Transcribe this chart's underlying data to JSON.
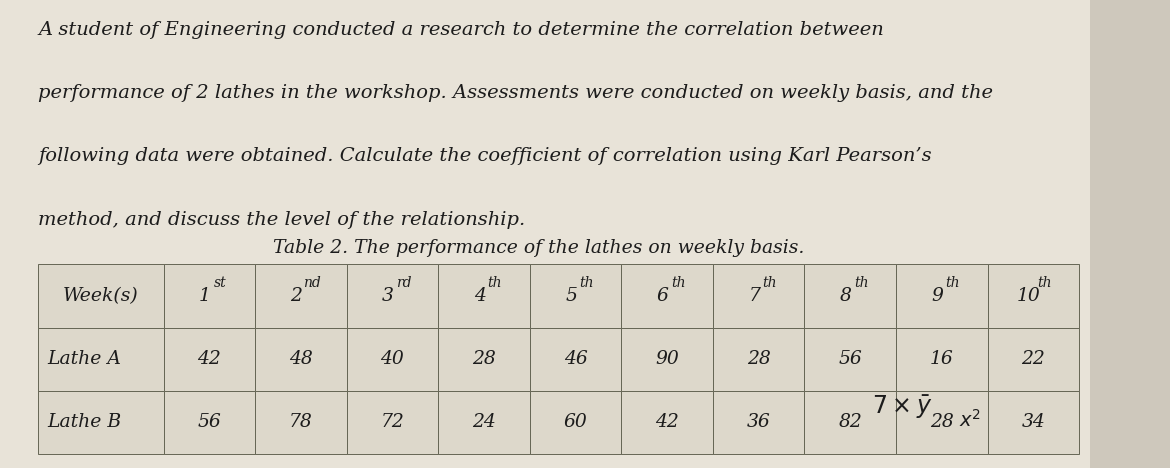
{
  "para_lines": [
    "A student of Engineering conducted a research to determine the correlation between",
    "performance of 2 lathes in the workshop. Assessments were conducted on weekly basis, and the",
    "following data were obtained. Calculate the coefficient of correlation using Karl Pearson’s",
    "method, and discuss the level of the relationship."
  ],
  "table_title": "Table 2. The performance of the lathes on weekly basis.",
  "col_headers_base": [
    "Week(s)",
    "1",
    "2",
    "3",
    "4",
    "5",
    "6",
    "7",
    "8",
    "9",
    "10"
  ],
  "col_headers_sup": [
    "",
    "st",
    "nd",
    "rd",
    "th",
    "th",
    "th",
    "th",
    "th",
    "th",
    "th"
  ],
  "lathe_a": [
    42,
    48,
    40,
    28,
    46,
    90,
    28,
    56,
    16,
    22
  ],
  "lathe_b": [
    56,
    78,
    72,
    24,
    60,
    42,
    36,
    82,
    28,
    34
  ],
  "row_labels": [
    "Lathe A",
    "Lathe B"
  ],
  "bg_color": "#cec8bc",
  "paper_color": "#e8e3d8",
  "table_bg": "#ddd8cb",
  "text_color": "#1c1c1c",
  "border_color": "#666655",
  "font_size_para": 14.0,
  "font_size_table_header": 13.5,
  "font_size_table_data": 13.5,
  "font_size_title": 13.5,
  "figsize": [
    11.7,
    4.68
  ],
  "dpi": 100
}
